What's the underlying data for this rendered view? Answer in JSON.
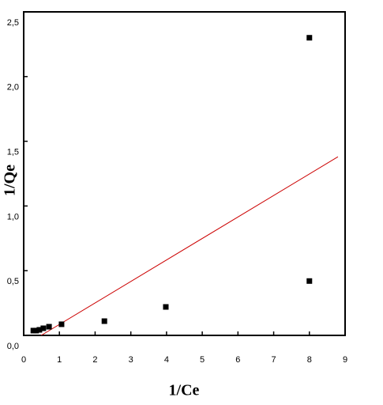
{
  "chart_data": {
    "type": "scatter",
    "x_label": "1/Ce",
    "y_label": "1/Qe",
    "xlim": [
      0,
      9
    ],
    "ylim": [
      0,
      2.5
    ],
    "xticks": [
      0,
      1,
      2,
      3,
      4,
      5,
      6,
      7,
      8,
      9
    ],
    "yticks": [
      {
        "value": 0,
        "label": "0,0"
      },
      {
        "value": 0.5,
        "label": "0,5"
      },
      {
        "value": 1,
        "label": "1,0"
      },
      {
        "value": 1.5,
        "label": "1,5"
      },
      {
        "value": 2,
        "label": "2,0"
      },
      {
        "value": 2.5,
        "label": "2,5"
      }
    ],
    "series": [
      {
        "color": "#000000",
        "x": [
          0.27,
          0.35,
          0.44,
          0.55,
          0.71,
          1.06,
          2.26,
          3.98,
          8.0,
          8.0
        ],
        "values": [
          0.037,
          0.037,
          0.043,
          0.055,
          0.067,
          0.086,
          0.11,
          0.22,
          0.42,
          2.3
        ]
      }
    ],
    "fit": {
      "color": "#cc0000",
      "x": [
        0.49,
        8.8
      ],
      "values": [
        0,
        1.38
      ]
    }
  }
}
